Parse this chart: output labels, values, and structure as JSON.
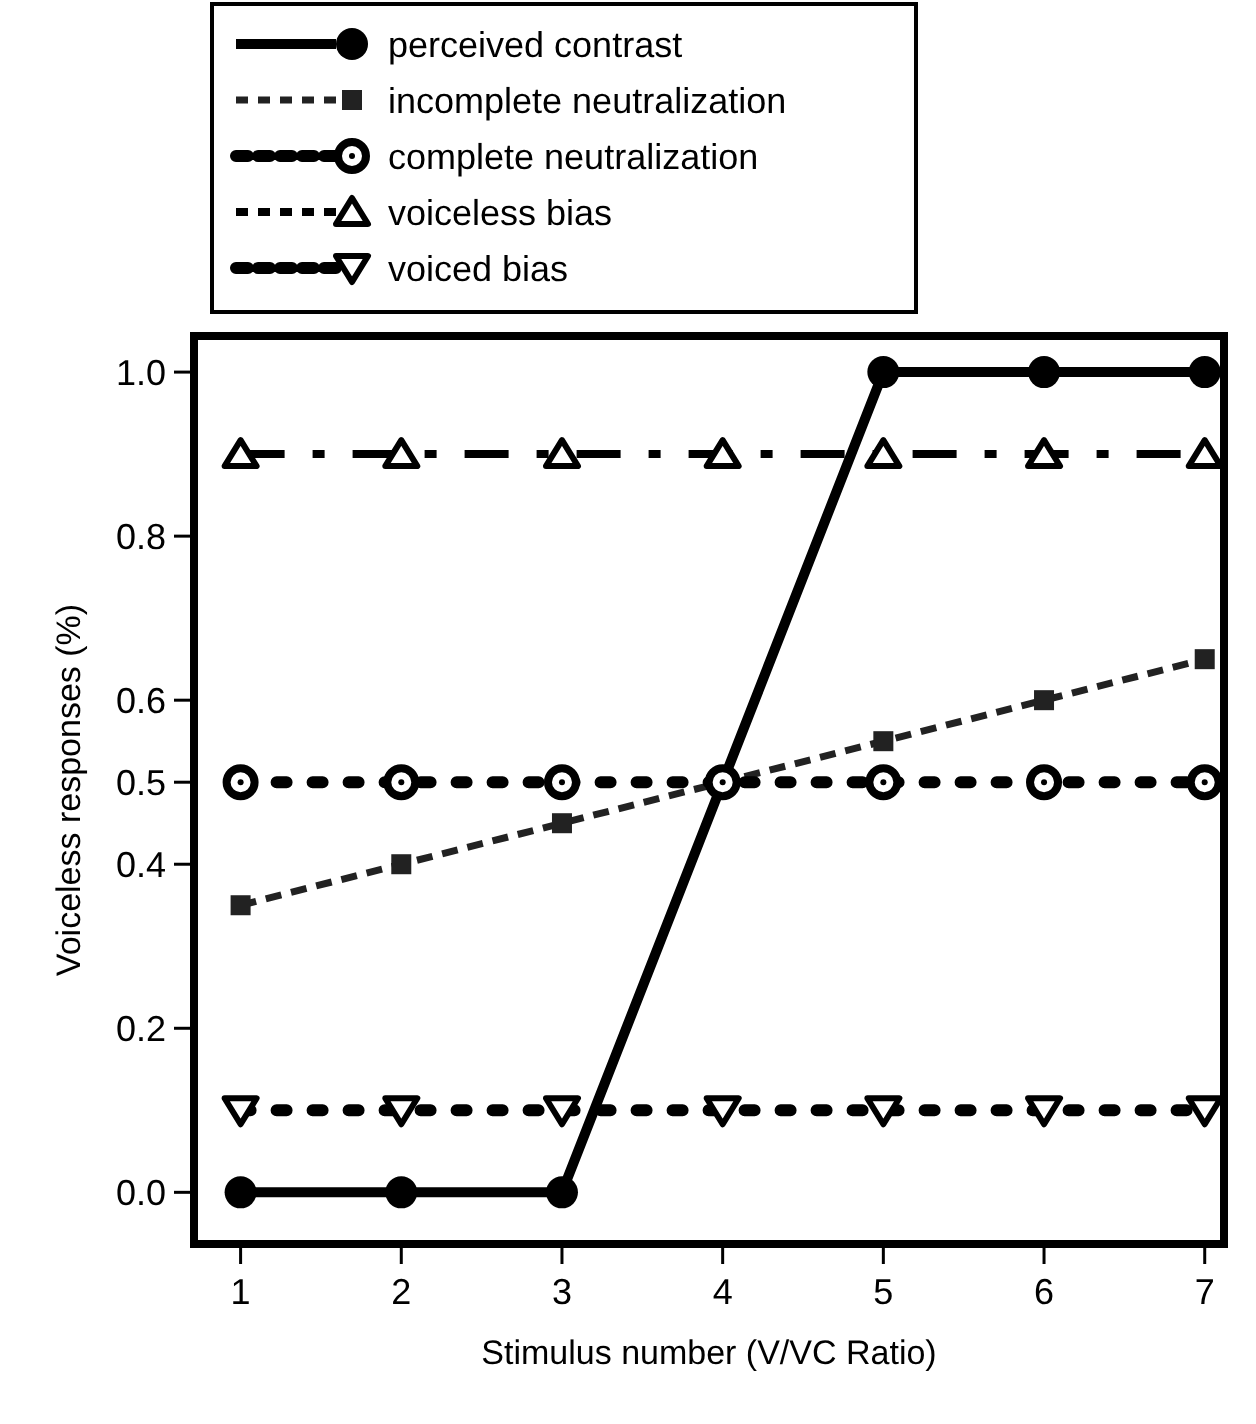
{
  "chart_data": {
    "type": "line",
    "xlabel": "Stimulus number (V/VC Ratio)",
    "ylabel": "Voiceless responses (%)",
    "x": [
      1,
      2,
      3,
      4,
      5,
      6,
      7
    ],
    "xlim": [
      0.71,
      7.12
    ],
    "xticks": [
      1,
      2,
      3,
      4,
      5,
      6,
      7
    ],
    "ylim": [
      -0.063,
      1.044
    ],
    "yticks": [
      {
        "value": 0,
        "label": "0.0"
      },
      0.2,
      0.4,
      0.5,
      0.6,
      0.8,
      {
        "value": 1,
        "label": "1.0"
      }
    ],
    "grid": false,
    "legend": "top left",
    "series": [
      {
        "name": "perceived contrast",
        "color": "#000000",
        "marker": "circle",
        "line_style": "solid",
        "values": [
          0,
          0,
          0,
          0.5,
          1,
          1,
          1
        ]
      },
      {
        "name": "incomplete neutralization",
        "color": "#222222",
        "marker": "square",
        "line_style": "dashed",
        "values": [
          0.35,
          0.4,
          0.45,
          0.5,
          0.55,
          0.6,
          0.65
        ]
      },
      {
        "name": "complete neutralization",
        "color": "#000000",
        "marker": "circle-open",
        "line_style": "dotted",
        "values": [
          0.5,
          0.5,
          0.5,
          0.5,
          0.5,
          0.5,
          0.5
        ]
      },
      {
        "name": "voiceless bias",
        "color": "#000000",
        "marker": "triangle-open",
        "line_style": "dashdot",
        "values": [
          0.9,
          0.9,
          0.9,
          0.9,
          0.9,
          0.9,
          0.9
        ]
      },
      {
        "name": "voiced bias",
        "color": "#000000",
        "marker": "triangle-down-open",
        "line_style": "dotted",
        "values": [
          0.1,
          0.1,
          0.1,
          0.1,
          0.1,
          0.1,
          0.1
        ]
      }
    ]
  }
}
